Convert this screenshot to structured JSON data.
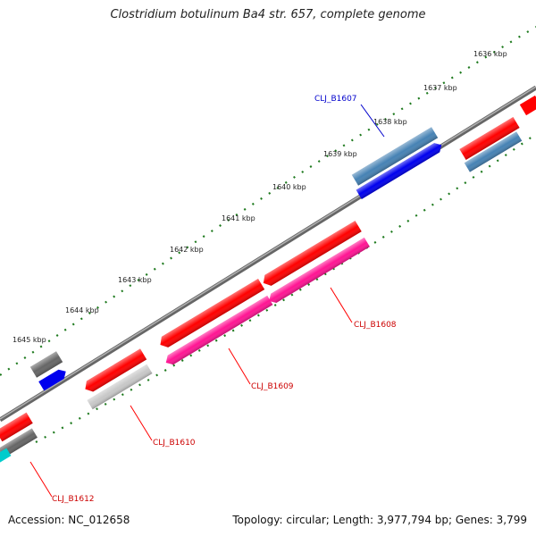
{
  "title": "Clostridium botulinum Ba4 str. 657, complete genome",
  "footer": {
    "accession": "Accession: NC_012658",
    "summary": "Topology: circular; Length: 3,977,794 bp; Genes: 3,799"
  },
  "colors": {
    "backbone": "#8a8a8a",
    "tick": "#1e7a1e",
    "red": "#ff0000",
    "blue": "#0000ee",
    "steelblue": "#4682b4",
    "pink": "#ff1493",
    "gray": "#666666",
    "lightgray": "#c8c8c8",
    "cyan": "#00cccc"
  },
  "ruler": {
    "labels": [
      "1636 kbp",
      "1637 kbp",
      "1638 kbp",
      "1639 kbp",
      "1640 kbp",
      "1641 kbp",
      "1642 kbp",
      "1643 kbp",
      "1644 kbp",
      "1645 kbp"
    ]
  },
  "gene_labels": [
    {
      "id": "CLJ_B1607",
      "text": "CLJ_B1607",
      "color": "#0000cc"
    },
    {
      "id": "CLJ_B1608",
      "text": "CLJ_B1608",
      "color": "#cc0000"
    },
    {
      "id": "CLJ_B1609",
      "text": "CLJ_B1609",
      "color": "#cc0000"
    },
    {
      "id": "CLJ_B1610",
      "text": "CLJ_B1610",
      "color": "#cc0000"
    },
    {
      "id": "CLJ_B1612",
      "text": "CLJ_B1612",
      "color": "#cc0000"
    }
  ]
}
